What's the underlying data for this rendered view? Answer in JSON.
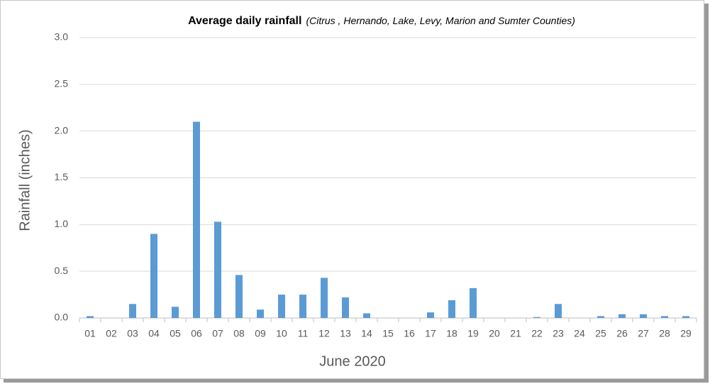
{
  "chart_data": {
    "type": "bar",
    "title": "Average daily rainfall",
    "subtitle": "(Citrus , Hernando, Lake, Levy, Marion and Sumter Counties)",
    "x_label": "June 2020",
    "y_label": "Rainfall (inches)",
    "categories": [
      "01",
      "02",
      "03",
      "04",
      "05",
      "06",
      "07",
      "08",
      "09",
      "10",
      "11",
      "12",
      "13",
      "14",
      "15",
      "16",
      "17",
      "18",
      "19",
      "20",
      "21",
      "22",
      "23",
      "24",
      "25",
      "26",
      "27",
      "28",
      "29"
    ],
    "values": [
      0.02,
      0,
      0.15,
      0.9,
      0.12,
      2.1,
      1.03,
      0.46,
      0.09,
      0.25,
      0.25,
      0.43,
      0.22,
      0.05,
      0,
      0,
      0.06,
      0.19,
      0.32,
      0,
      0,
      0.01,
      0.15,
      0,
      0.02,
      0.04,
      0.04,
      0.02,
      0.02
    ],
    "color": "#5b9bd5",
    "ylim": [
      0,
      3
    ],
    "yticks": [
      {
        "value": 0,
        "label": "0.0"
      },
      0.5,
      {
        "value": 1,
        "label": "1.0"
      },
      1.5,
      {
        "value": 2,
        "label": "2.0"
      },
      2.5,
      {
        "value": 3,
        "label": "3.0"
      }
    ],
    "grid": true
  }
}
